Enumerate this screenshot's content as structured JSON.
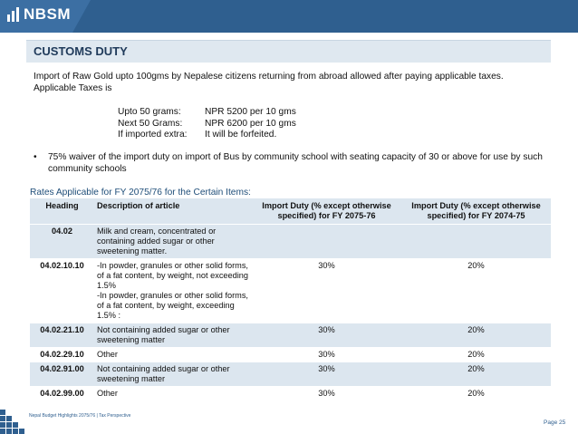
{
  "brand": {
    "logo_text": "NBSM"
  },
  "section": {
    "title": "CUSTOMS DUTY"
  },
  "intro": {
    "line1": "Import of Raw Gold upto 100gms by Nepalese citizens returning from abroad allowed after paying applicable taxes.",
    "line2": "Applicable Taxes is"
  },
  "rates": [
    {
      "label": "Upto 50 grams:",
      "value": "NPR 5200 per 10 gms"
    },
    {
      "label": "Next 50 Grams:",
      "value": "NPR 6200 per 10 gms"
    },
    {
      "label": "If imported extra:",
      "value": "It will be forfeited."
    }
  ],
  "bullet": {
    "symbol": "•",
    "text": "75%  waiver of the import duty on import of Bus by community school with seating capacity of 30 or above for use by such community schools"
  },
  "table": {
    "title": "Rates Applicable for FY 2075/76 for the Certain Items:",
    "headers": {
      "heading": "Heading",
      "description": "Description of article",
      "duty_current": "Import Duty (% except otherwise specified) for FY 2075-76",
      "duty_previous": "Import Duty (% except otherwise specified) for FY 2074-75"
    },
    "rows": [
      {
        "heading": "04.02",
        "description": "Milk and cream, concentrated or containing added sugar or other sweetening matter.",
        "duty_current": "",
        "duty_previous": ""
      },
      {
        "heading": "04.02.10.10",
        "description": "-In powder, granules or other solid forms, of a fat content, by weight, not exceeding 1.5%\n-In powder, granules or other solid forms, of a fat content, by weight, exceeding 1.5% :",
        "duty_current": "30%",
        "duty_previous": "20%"
      },
      {
        "heading": "04.02.21.10",
        "description": "Not containing added sugar or other sweetening matter",
        "duty_current": "30%",
        "duty_previous": "20%"
      },
      {
        "heading": "04.02.29.10",
        "description": "Other",
        "duty_current": "30%",
        "duty_previous": "20%"
      },
      {
        "heading": "04.02.91.00",
        "description": "Not containing added sugar or other sweetening matter",
        "duty_current": "30%",
        "duty_previous": "20%"
      },
      {
        "heading": "04.02.99.00",
        "description": "Other",
        "duty_current": "30%",
        "duty_previous": "20%"
      }
    ]
  },
  "footer": {
    "left": "Nepal Budget Highlights 2075/76 | Tax Perspective",
    "page": "Page 25"
  },
  "colors": {
    "brand_blue": "#2f5f8f",
    "table_shade": "#dce6ef"
  }
}
